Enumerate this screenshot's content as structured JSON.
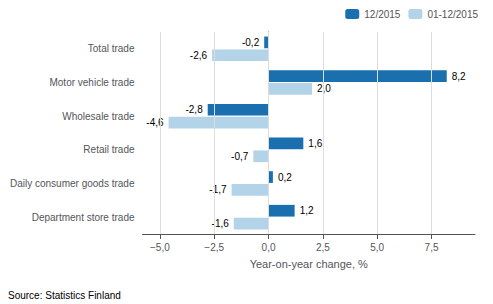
{
  "chart_data": {
    "type": "bar",
    "orientation": "horizontal",
    "categories": [
      "Total trade",
      "Motor vehicle trade",
      "Wholesale trade",
      "Retail trade",
      "Daily consumer goods trade",
      "Department store trade"
    ],
    "series": [
      {
        "name": "12/2015",
        "color": "#1a6faf",
        "values": [
          -0.2,
          8.2,
          -2.8,
          1.6,
          0.2,
          1.2
        ],
        "value_labels": [
          "-0,2",
          "8,2",
          "-2,8",
          "1,6",
          "0,2",
          "1,2"
        ]
      },
      {
        "name": "01-12/2015",
        "color": "#b3d3e8",
        "values": [
          -2.6,
          2.0,
          -4.6,
          -0.7,
          -1.7,
          -1.6
        ],
        "value_labels": [
          "-2,6",
          "2,0",
          "-4,6",
          "-0,7",
          "-1,7",
          "-1,6"
        ]
      }
    ],
    "xlabel": "Year-on-year change, %",
    "xlim": [
      -5.8,
      9.5
    ],
    "xticks": [
      {
        "value": -5.0,
        "label": "−5,0"
      },
      {
        "value": -2.5,
        "label": "−2,5"
      },
      {
        "value": 0.0,
        "label": "0,0"
      },
      {
        "value": 2.5,
        "label": "2,5"
      },
      {
        "value": 5.0,
        "label": "5,0"
      },
      {
        "value": 7.5,
        "label": "7,5"
      }
    ],
    "grid": true,
    "legend": "upper right",
    "data_labels": true,
    "annotations": [
      "Source: Statistics Finland"
    ]
  }
}
